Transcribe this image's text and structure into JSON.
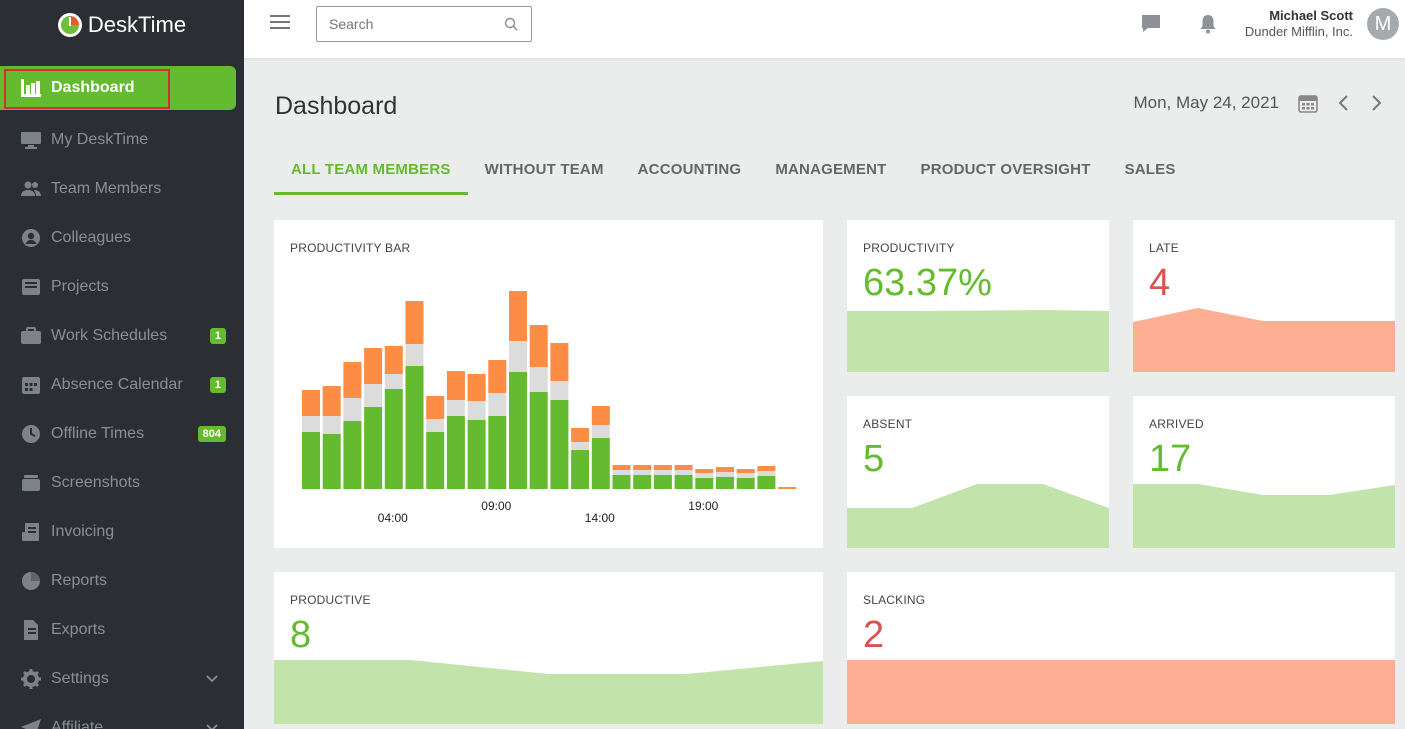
{
  "brand": {
    "name": "DeskTime"
  },
  "sidebar": {
    "items": [
      {
        "label": "Dashboard",
        "icon": "bar-chart-icon",
        "active": true
      },
      {
        "label": "My DeskTime",
        "icon": "monitor-icon"
      },
      {
        "label": "Team Members",
        "icon": "users-icon"
      },
      {
        "label": "Colleagues",
        "icon": "user-circle-icon"
      },
      {
        "label": "Projects",
        "icon": "inbox-icon"
      },
      {
        "label": "Work Schedules",
        "icon": "briefcase-icon",
        "badge": "1"
      },
      {
        "label": "Absence Calendar",
        "icon": "calendar-icon",
        "badge": "1"
      },
      {
        "label": "Offline Times",
        "icon": "clock-icon",
        "badge": "804"
      },
      {
        "label": "Screenshots",
        "icon": "layers-icon"
      },
      {
        "label": "Invoicing",
        "icon": "invoice-icon"
      },
      {
        "label": "Reports",
        "icon": "pie-chart-icon"
      },
      {
        "label": "Exports",
        "icon": "file-export-icon"
      },
      {
        "label": "Settings",
        "icon": "gear-icon",
        "chevron": true
      },
      {
        "label": "Affiliate",
        "icon": "paper-plane-icon",
        "chevron": true
      }
    ]
  },
  "topbar": {
    "search_placeholder": "Search",
    "user_name": "Michael Scott",
    "company": "Dunder Mifflin, Inc.",
    "avatar_letter": "M"
  },
  "page": {
    "title": "Dashboard",
    "date": "Mon, May 24, 2021"
  },
  "tabs": [
    "ALL TEAM MEMBERS",
    "WITHOUT TEAM",
    "ACCOUNTING",
    "MANAGEMENT",
    "PRODUCT OVERSIGHT",
    "SALES"
  ],
  "colors": {
    "productive": "#65bb2f",
    "neutral": "#dcdcdc",
    "unproductive": "#fd8c44",
    "green_fill": "#c2e4ab",
    "red_fill": "#fdae93"
  },
  "cards": {
    "productivity": {
      "title": "PRODUCTIVITY",
      "value": "63.37%"
    },
    "late": {
      "title": "LATE",
      "value": "4"
    },
    "absent": {
      "title": "ABSENT",
      "value": "5"
    },
    "arrived": {
      "title": "ARRIVED",
      "value": "17"
    },
    "productive": {
      "title": "PRODUCTIVE",
      "value": "8"
    },
    "slacking": {
      "title": "SLACKING",
      "value": "2"
    }
  },
  "chart_data": {
    "type": "bar",
    "title": "PRODUCTIVITY BAR",
    "stacked": true,
    "tick_labels": [
      "04:00",
      "09:00",
      "14:00",
      "19:00"
    ],
    "series": [
      {
        "values": [
          57,
          55,
          68,
          82,
          100,
          123,
          57,
          73,
          69,
          73,
          117,
          97,
          89,
          39,
          51,
          14,
          14,
          14,
          14,
          11,
          12,
          11,
          13,
          0
        ]
      },
      {
        "values": [
          16,
          18,
          23,
          23,
          15,
          22,
          13,
          16,
          19,
          23,
          31,
          25,
          19,
          8,
          13,
          5,
          5,
          5,
          5,
          5,
          5,
          5,
          5,
          0
        ]
      },
      {
        "values": [
          26,
          30,
          36,
          36,
          28,
          43,
          23,
          29,
          27,
          33,
          50,
          42,
          38,
          14,
          19,
          5,
          5,
          5,
          5,
          4,
          5,
          4,
          5,
          2
        ]
      }
    ]
  }
}
